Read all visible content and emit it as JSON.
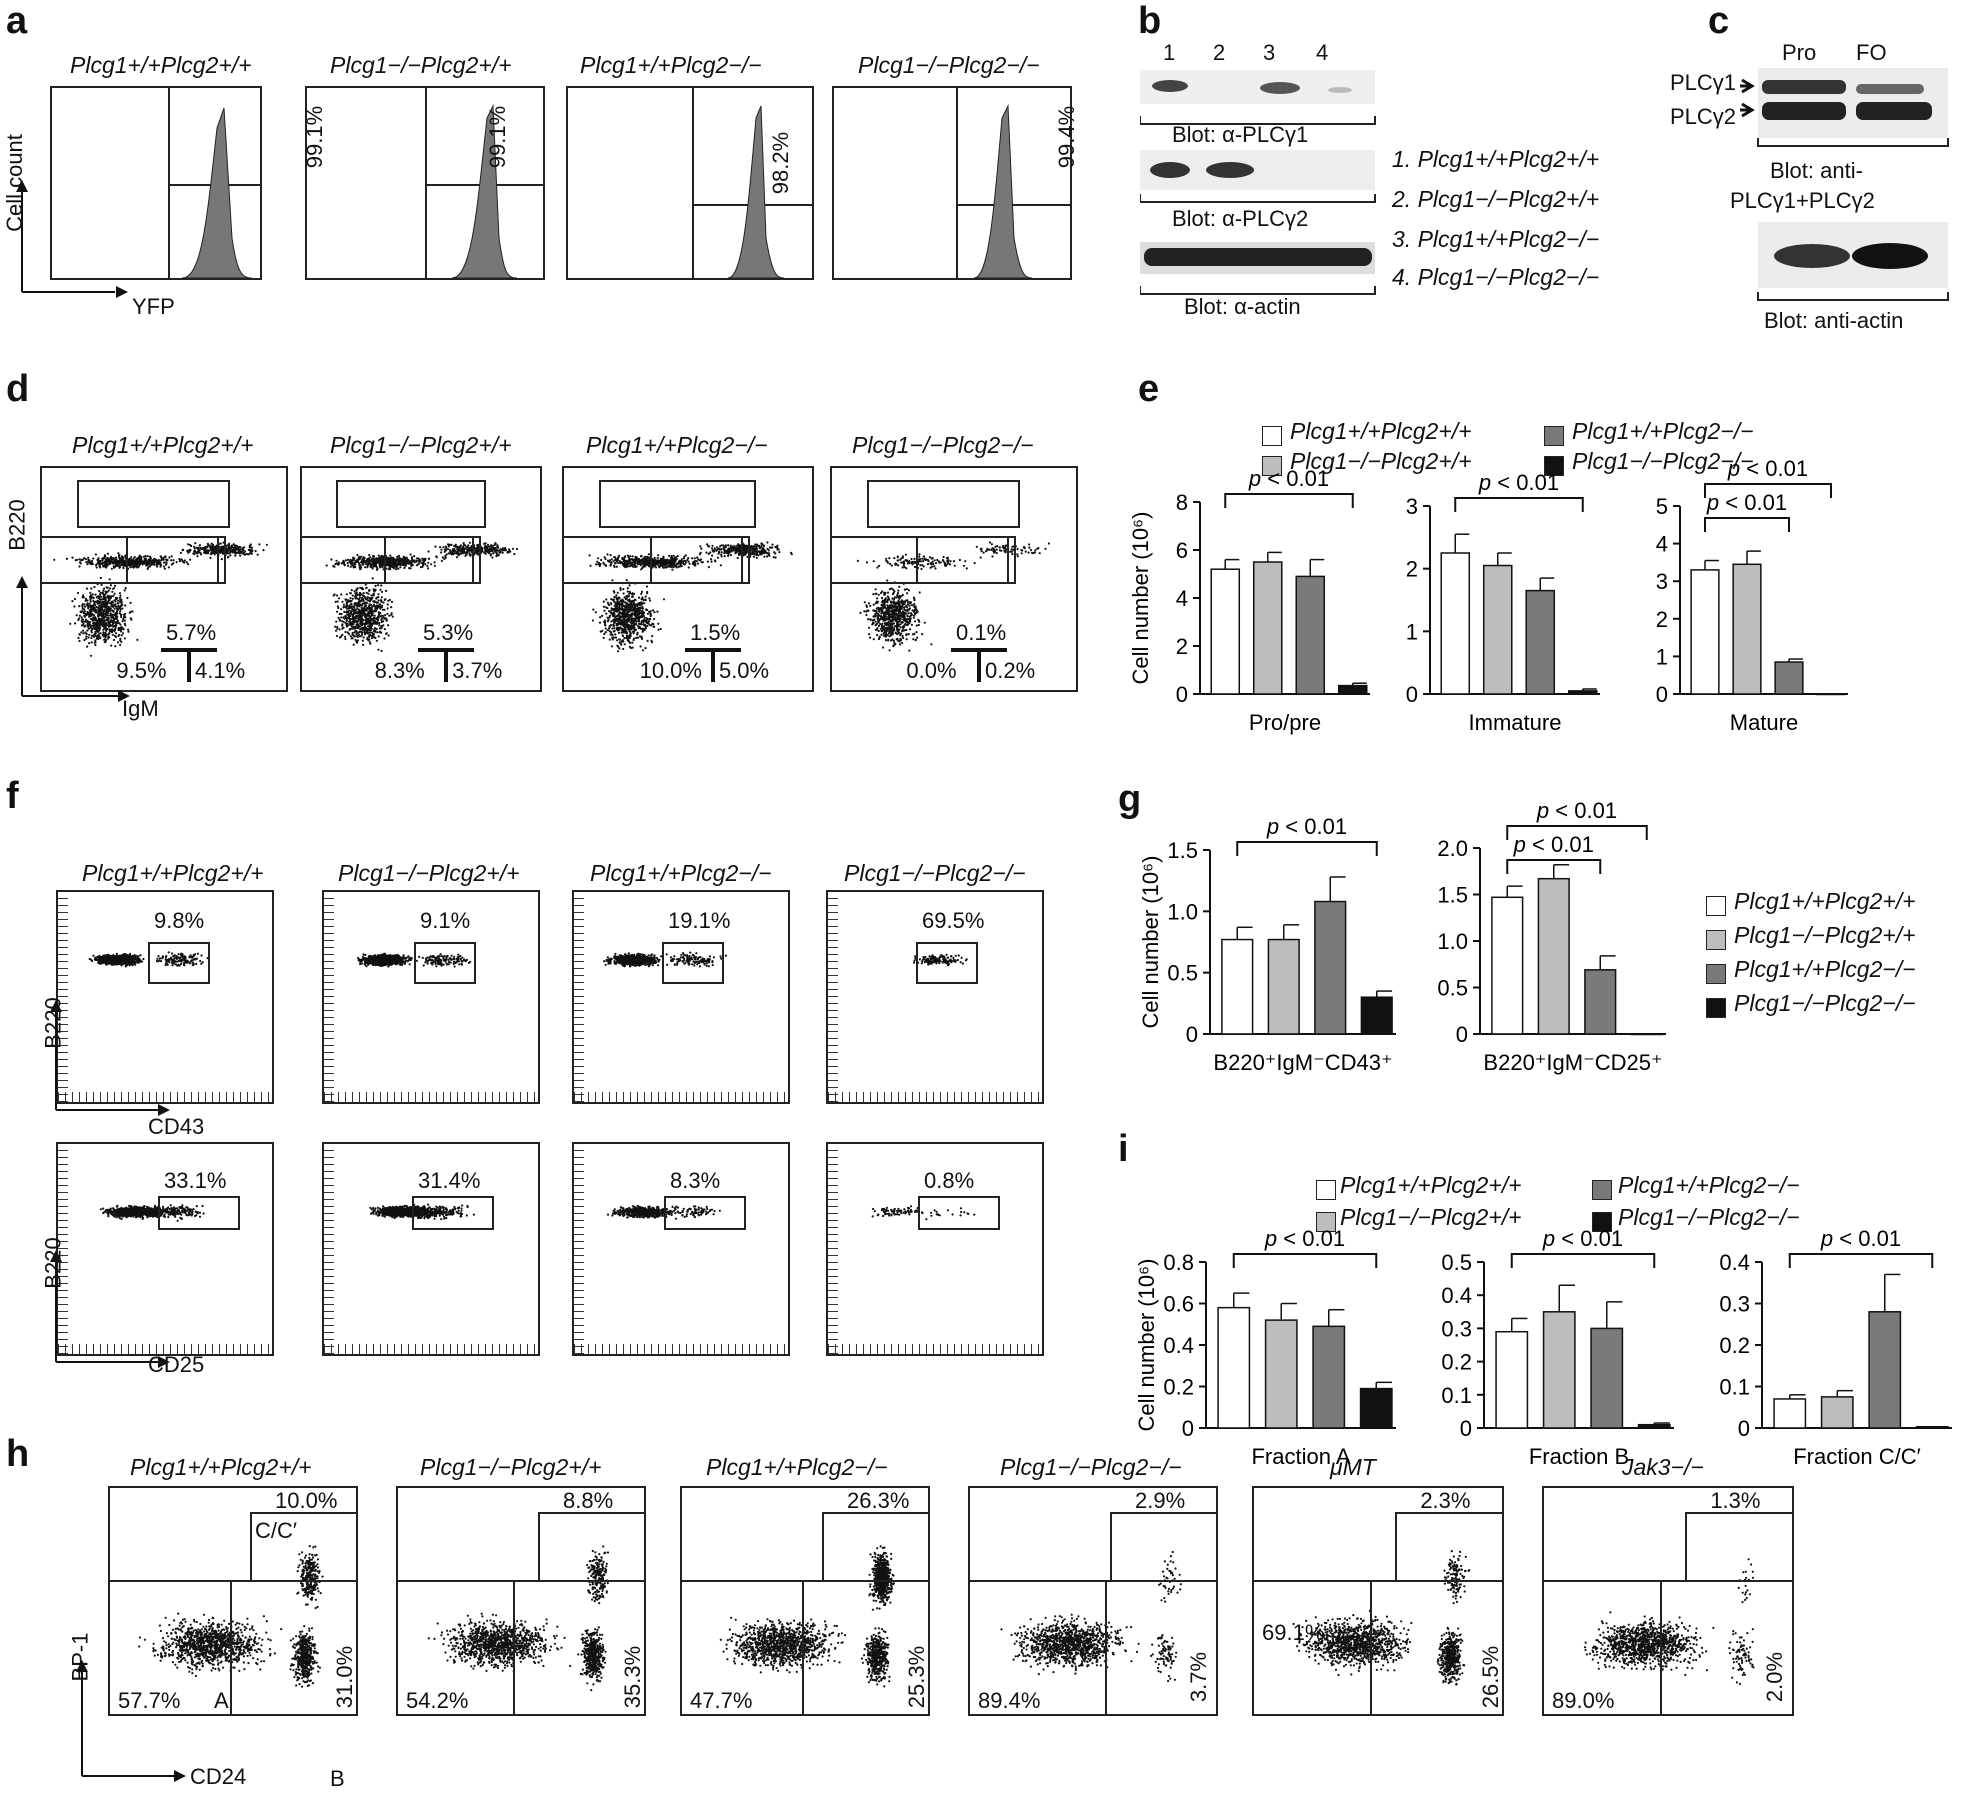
{
  "panel_labels": {
    "a": "a",
    "b": "b",
    "c": "c",
    "d": "d",
    "e": "e",
    "f": "f",
    "g": "g",
    "h": "h",
    "i": "i"
  },
  "genotypes": {
    "wt": "Plcg1+/+Plcg2+/+",
    "g1ko": "Plcg1−/−Plcg2+/+",
    "g2ko": "Plcg1+/+Plcg2−/−",
    "dko": "Plcg1−/−Plcg2−/−",
    "umt": "μMT",
    "jak3": "Jak3−/−"
  },
  "panel_a": {
    "y_axis": "Cell count",
    "x_axis": "YFP",
    "percents": [
      "99.1%",
      "99.1%",
      "98.2%",
      "99.4%"
    ]
  },
  "panel_b": {
    "lanes": [
      "1",
      "2",
      "3",
      "4"
    ],
    "blots": [
      "Blot: α-PLCγ1",
      "Blot: α-PLCγ2",
      "Blot: α-actin"
    ],
    "legend": [
      "1. Plcg1+/+Plcg2+/+",
      "2. Plcg1−/−Plcg2+/+",
      "3. Plcg1+/+Plcg2−/−",
      "4. Plcg1−/−Plcg2−/−"
    ]
  },
  "panel_c": {
    "lanes": [
      "Pro",
      "FO"
    ],
    "bands": [
      "PLCγ1",
      "PLCγ2"
    ],
    "blot1": "Blot: anti-",
    "blot1b": "PLCγ1+PLCγ2",
    "blot2": "Blot: anti-actin"
  },
  "panel_d": {
    "y_axis": "B220",
    "x_axis": "IgM",
    "plots": [
      {
        "top": "5.7%",
        "left": "9.5%",
        "right": "4.1%"
      },
      {
        "top": "5.3%",
        "left": "8.3%",
        "right": "3.7%"
      },
      {
        "top": "1.5%",
        "left": "10.0%",
        "right": "5.0%"
      },
      {
        "top": "0.1%",
        "left": "0.0%",
        "right": "0.2%"
      }
    ]
  },
  "panel_f": {
    "y_axis": "B220",
    "x_axis_top": "CD43",
    "x_axis_bottom": "CD25",
    "top_percents": [
      "9.8%",
      "9.1%",
      "19.1%",
      "69.5%"
    ],
    "bottom_percents": [
      "33.1%",
      "31.4%",
      "8.3%",
      "0.8%"
    ]
  },
  "panel_h": {
    "y_axis": "BP-1",
    "x_axis": "CD24",
    "gate_c": "C/C′",
    "gate_a": "A",
    "gate_b": "B",
    "plots": [
      {
        "top": "10.0%",
        "left": "57.7%",
        "right": "31.0%"
      },
      {
        "top": "8.8%",
        "left": "54.2%",
        "right": "35.3%"
      },
      {
        "top": "26.3%",
        "left": "47.7%",
        "right": "25.3%"
      },
      {
        "top": "2.9%",
        "left": "89.4%",
        "right": "3.7%"
      },
      {
        "top": "2.3%",
        "left": "69.1%",
        "right": "26.5%"
      },
      {
        "top": "1.3%",
        "left": "89.0%",
        "right": "2.0%"
      }
    ]
  },
  "colors": {
    "wt": "#ffffff",
    "g1ko": "#bdbdbd",
    "g2ko": "#7a7a7a",
    "dko": "#111111"
  },
  "chart_data": [
    {
      "id": "e1",
      "type": "bar",
      "ylabel": "Cell number (10⁶)",
      "xlabel": "Pro/pre",
      "ylim": [
        0,
        8
      ],
      "yticks": [
        "0",
        "2",
        "4",
        "6",
        "8"
      ],
      "values": [
        5.2,
        5.5,
        4.9,
        0.35
      ],
      "errors": [
        0.4,
        0.4,
        0.7,
        0.1
      ],
      "brackets": [
        {
          "from": 0,
          "to": 3,
          "label": "p < 0.01"
        }
      ]
    },
    {
      "id": "e2",
      "type": "bar",
      "xlabel": "Immature",
      "ylim": [
        0,
        3
      ],
      "yticks": [
        "0",
        "1",
        "2",
        "3"
      ],
      "values": [
        2.25,
        2.05,
        1.65,
        0.05
      ],
      "errors": [
        0.3,
        0.2,
        0.2,
        0.03
      ],
      "brackets": [
        {
          "from": 0,
          "to": 3,
          "label": "p < 0.01"
        }
      ]
    },
    {
      "id": "e3",
      "type": "bar",
      "xlabel": "Mature",
      "ylim": [
        0,
        5
      ],
      "yticks": [
        "0",
        "1",
        "2",
        "3",
        "4",
        "5"
      ],
      "values": [
        3.3,
        3.45,
        0.85,
        0.0
      ],
      "errors": [
        0.25,
        0.35,
        0.08,
        0
      ],
      "brackets": [
        {
          "from": 0,
          "to": 2,
          "label": "p < 0.01"
        },
        {
          "from": 0,
          "to": 3,
          "label": "p < 0.01"
        }
      ]
    },
    {
      "id": "g1",
      "type": "bar",
      "ylabel": "Cell number (10⁶)",
      "xlabel": "B220⁺IgM⁻CD43⁺",
      "ylim": [
        0,
        1.5
      ],
      "yticks": [
        "0",
        "0.5",
        "1.0",
        "1.5"
      ],
      "values": [
        0.77,
        0.77,
        1.08,
        0.3
      ],
      "errors": [
        0.1,
        0.12,
        0.2,
        0.05
      ],
      "brackets": [
        {
          "from": 0,
          "to": 3,
          "label": "p < 0.01"
        }
      ]
    },
    {
      "id": "g2",
      "type": "bar",
      "xlabel": "B220⁺IgM⁻CD25⁺",
      "ylim": [
        0,
        2.0
      ],
      "yticks": [
        "0",
        "0.5",
        "1.0",
        "1.5",
        "2.0"
      ],
      "values": [
        1.47,
        1.67,
        0.69,
        0.0
      ],
      "errors": [
        0.12,
        0.15,
        0.15,
        0
      ],
      "brackets": [
        {
          "from": 0,
          "to": 2,
          "label": "p < 0.01"
        },
        {
          "from": 0,
          "to": 3,
          "label": "p < 0.01"
        }
      ]
    },
    {
      "id": "i1",
      "type": "bar",
      "ylabel": "Cell number (10⁶)",
      "xlabel": "Fraction A",
      "ylim": [
        0,
        0.8
      ],
      "yticks": [
        "0",
        "0.2",
        "0.4",
        "0.6",
        "0.8"
      ],
      "values": [
        0.58,
        0.52,
        0.49,
        0.19
      ],
      "errors": [
        0.07,
        0.08,
        0.08,
        0.03
      ],
      "brackets": [
        {
          "from": 0,
          "to": 3,
          "label": "p < 0.01"
        }
      ]
    },
    {
      "id": "i2",
      "type": "bar",
      "xlabel": "Fraction B",
      "ylim": [
        0,
        0.5
      ],
      "yticks": [
        "0",
        "0.1",
        "0.2",
        "0.3",
        "0.4",
        "0.5"
      ],
      "values": [
        0.29,
        0.35,
        0.3,
        0.01
      ],
      "errors": [
        0.04,
        0.08,
        0.08,
        0.005
      ],
      "brackets": [
        {
          "from": 0,
          "to": 3,
          "label": "p < 0.01"
        }
      ]
    },
    {
      "id": "i3",
      "type": "bar",
      "xlabel": "Fraction C/C′",
      "ylim": [
        0,
        0.4
      ],
      "yticks": [
        "0",
        "0.1",
        "0.2",
        "0.3",
        "0.4"
      ],
      "values": [
        0.07,
        0.075,
        0.28,
        0.003
      ],
      "errors": [
        0.01,
        0.015,
        0.09,
        0
      ],
      "brackets": [
        {
          "from": 0,
          "to": 3,
          "label": "p < 0.01"
        }
      ]
    }
  ]
}
